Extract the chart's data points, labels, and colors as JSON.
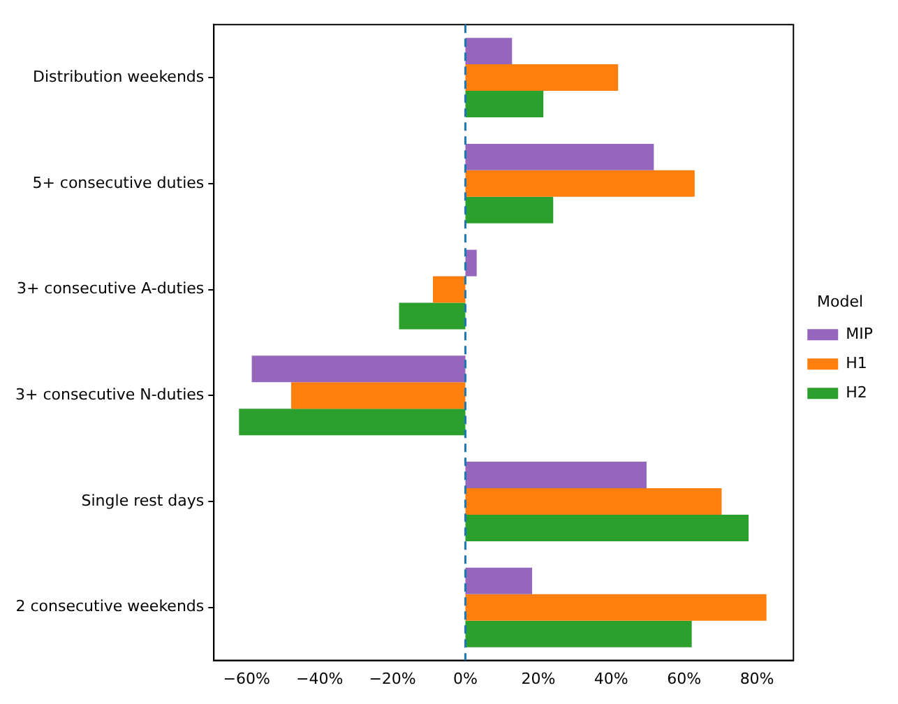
{
  "chart_data": {
    "type": "bar",
    "orientation": "horizontal",
    "categories": [
      "Distribution weekends",
      "5+ consecutive duties",
      "3+ consecutive A-duties",
      "3+ consecutive N-duties",
      "Single rest days",
      "2 consecutive weekends"
    ],
    "series": [
      {
        "name": "MIP",
        "color": "#9467bd",
        "values": [
          12.8,
          51.7,
          3.1,
          -58.6,
          49.7,
          18.3
        ]
      },
      {
        "name": "H1",
        "color": "#ff7f0e",
        "values": [
          41.9,
          62.9,
          -8.9,
          -47.8,
          70.3,
          82.6
        ]
      },
      {
        "name": "H2",
        "color": "#2ca02c",
        "values": [
          21.4,
          24.1,
          -18.2,
          -62.1,
          77.7,
          62.1
        ]
      }
    ],
    "xlim": [
      -69,
      90
    ],
    "xticks": [
      {
        "value": -60,
        "label": "−60%"
      },
      {
        "value": -40,
        "label": "−40%"
      },
      {
        "value": -20,
        "label": "−20%"
      },
      {
        "value": 0,
        "label": "0%"
      },
      {
        "value": 20,
        "label": "20%"
      },
      {
        "value": 40,
        "label": "40%"
      },
      {
        "value": 60,
        "label": "60%"
      },
      {
        "value": 80,
        "label": "80%"
      }
    ],
    "ref_lines": [
      {
        "axis": "x",
        "value": 0,
        "color": "#1f77b4",
        "line_style": "dashed"
      }
    ],
    "legend": "right",
    "legend_title": "Model",
    "grid": false
  }
}
